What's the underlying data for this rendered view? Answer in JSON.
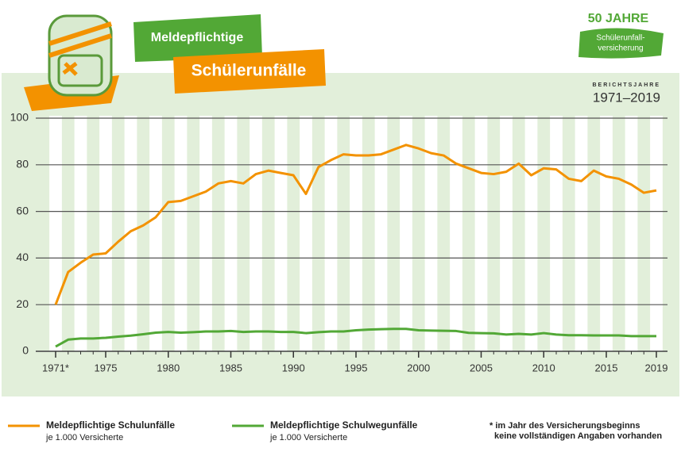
{
  "header": {
    "label_top": "Meldepflichtige",
    "label_main": "Schülerunfälle",
    "anniversary": "50 JAHRE",
    "badge_lines": [
      "Schülerunfall-",
      "versicherung"
    ],
    "period_caption": "BERICHTSJAHRE",
    "period": "1971–2019"
  },
  "chart_data": {
    "type": "line",
    "x": [
      1971,
      1972,
      1973,
      1974,
      1975,
      1976,
      1977,
      1978,
      1979,
      1980,
      1981,
      1982,
      1983,
      1984,
      1985,
      1986,
      1987,
      1988,
      1989,
      1990,
      1991,
      1992,
      1993,
      1994,
      1995,
      1996,
      1997,
      1998,
      1999,
      2000,
      2001,
      2002,
      2003,
      2004,
      2005,
      2006,
      2007,
      2008,
      2009,
      2010,
      2011,
      2012,
      2013,
      2014,
      2015,
      2016,
      2017,
      2018,
      2019
    ],
    "series": [
      {
        "name": "Meldepflichtige Schulunfälle",
        "color": "#f39200",
        "values": [
          20,
          34,
          38,
          41.5,
          42,
          47,
          51.5,
          54,
          57.5,
          64,
          64.5,
          66.5,
          68.5,
          72,
          73,
          72,
          76,
          77.5,
          76.5,
          75.5,
          67.5,
          79,
          82,
          84.5,
          84,
          84,
          84.5,
          86.5,
          88.5,
          87,
          85,
          84,
          80.5,
          78.5,
          76.5,
          76,
          77,
          80.5,
          75.5,
          78.5,
          78,
          74,
          73,
          77.5,
          75,
          74,
          71.5,
          68,
          69
        ]
      },
      {
        "name": "Meldepflichtige Schulwegunfälle",
        "color": "#52a836",
        "values": [
          2,
          5,
          5.5,
          5.5,
          5.8,
          6.3,
          6.7,
          7.3,
          8,
          8.3,
          8,
          8.2,
          8.5,
          8.5,
          8.7,
          8.3,
          8.5,
          8.5,
          8.3,
          8.3,
          7.8,
          8.2,
          8.5,
          8.5,
          9,
          9.3,
          9.5,
          9.6,
          9.6,
          9,
          8.9,
          8.8,
          8.7,
          7.9,
          7.8,
          7.7,
          7.2,
          7.5,
          7.2,
          7.8,
          7.2,
          6.9,
          6.9,
          6.8,
          6.8,
          6.8,
          6.5,
          6.5,
          6.5
        ]
      }
    ],
    "legend_unit": "je 1.000 Versicherte",
    "footnote": [
      "* im Jahr des Versicherungsbeginns",
      "keine vollständigen Angaben vorhanden"
    ],
    "xlim": [
      1971,
      2019
    ],
    "xticks": [
      {
        "value": 1971,
        "label": "1971*"
      },
      1975,
      1980,
      1985,
      1990,
      1995,
      2000,
      2005,
      2010,
      2015,
      2019
    ],
    "ylim": [
      0,
      100
    ],
    "yticks": [
      0,
      20,
      40,
      60,
      80,
      100
    ],
    "grid": true
  }
}
